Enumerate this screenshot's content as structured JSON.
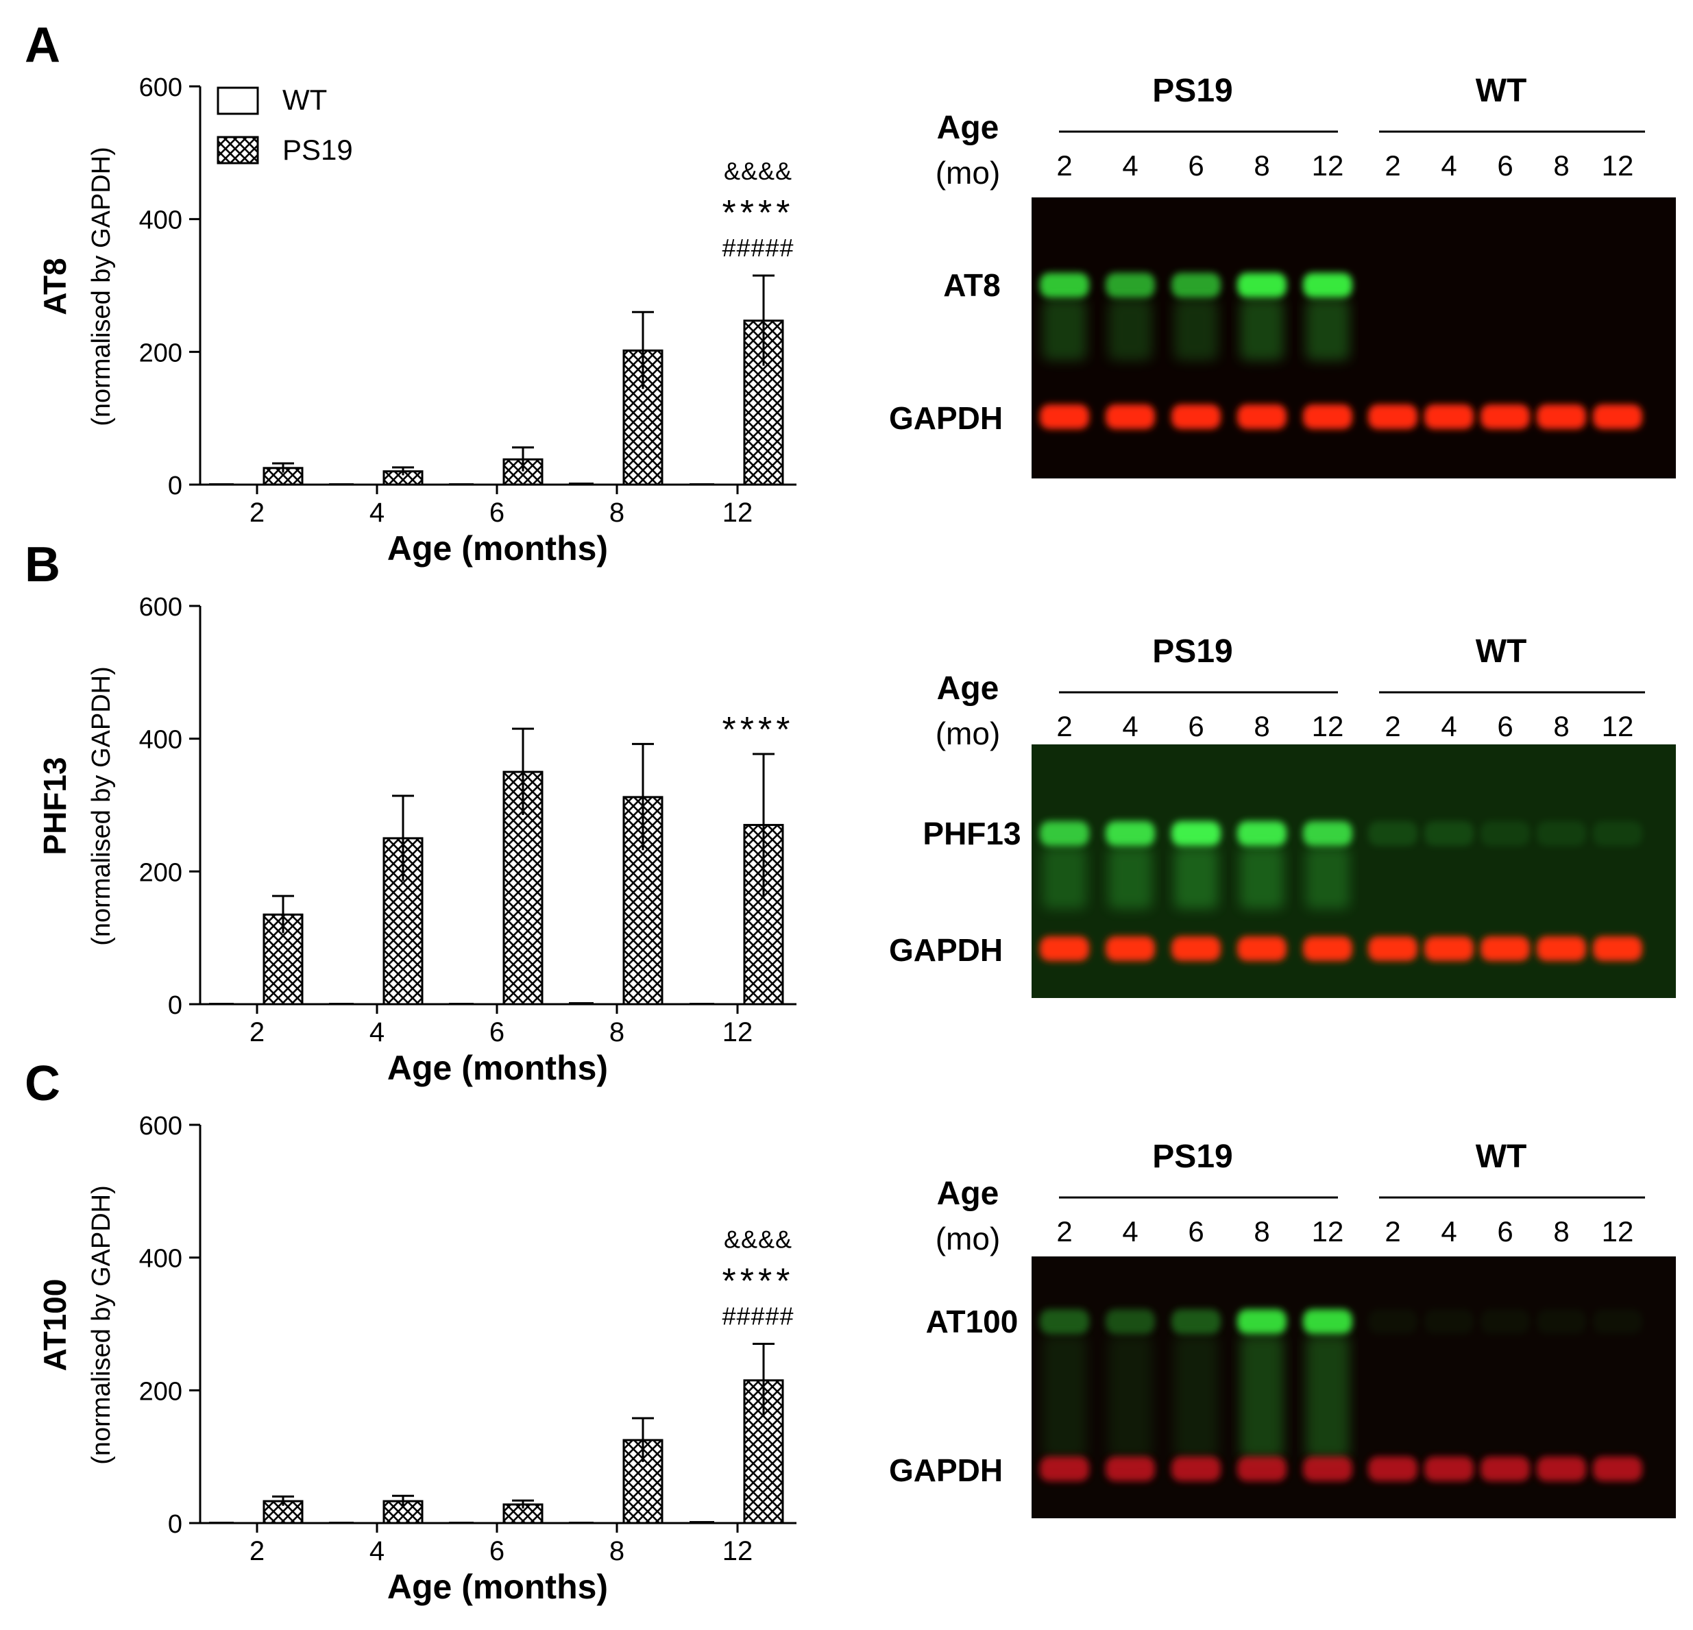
{
  "panels": [
    {
      "letter": "A",
      "ylabel_main": "AT8",
      "ylabel_sub": "(normalised by GAPDH)",
      "xlabel": "Age (months)",
      "ytick_labels": [
        "0",
        "200",
        "400",
        "600"
      ],
      "show_legend": true,
      "sig": [
        "&&&&",
        "****",
        "#####"
      ],
      "blot": {
        "group_left": "PS19",
        "group_right": "WT",
        "age_label": "Age",
        "mo_label": "(mo)",
        "lane_labels": [
          "2",
          "4",
          "6",
          "8",
          "12",
          "2",
          "4",
          "6",
          "8",
          "12"
        ],
        "band1_label": "AT8",
        "band2_label": "GAPDH",
        "background": "#0b0200",
        "band1_color": "#38e83c",
        "band2_color": "#ff2a10",
        "band1_intensity": [
          0.85,
          0.7,
          0.7,
          1.0,
          1.0,
          0,
          0,
          0,
          0,
          0
        ]
      }
    },
    {
      "letter": "B",
      "ylabel_main": "PHF13",
      "ylabel_sub": "(normalised by GAPDH)",
      "xlabel": "Age (months)",
      "ytick_labels": [
        "0",
        "200",
        "400",
        "600"
      ],
      "show_legend": false,
      "sig": [
        "****"
      ],
      "blot": {
        "group_left": "PS19",
        "group_right": "WT",
        "age_label": "Age",
        "mo_label": "(mo)",
        "lane_labels": [
          "2",
          "4",
          "6",
          "8",
          "12",
          "2",
          "4",
          "6",
          "8",
          "12"
        ],
        "band1_label": "PHF13",
        "band2_label": "GAPDH",
        "background": "#0d2a08",
        "band1_color": "#3ff04a",
        "band2_color": "#ff3010",
        "band1_intensity": [
          0.8,
          0.9,
          1.0,
          0.95,
          0.85,
          0.15,
          0.15,
          0.1,
          0.1,
          0.1
        ]
      }
    },
    {
      "letter": "C",
      "ylabel_main": "AT100",
      "ylabel_sub": "(normalised by GAPDH)",
      "xlabel": "Age (months)",
      "ytick_labels": [
        "0",
        "200",
        "400",
        "600"
      ],
      "show_legend": false,
      "sig": [
        "&&&&",
        "****",
        "#####"
      ],
      "blot": {
        "group_left": "PS19",
        "group_right": "WT",
        "age_label": "Age",
        "mo_label": "(mo)",
        "lane_labels": [
          "2",
          "4",
          "6",
          "8",
          "12",
          "2",
          "4",
          "6",
          "8",
          "12"
        ],
        "band1_label": "AT100",
        "band2_label": "GAPDH",
        "background": "#0c0502",
        "band1_color": "#34d838",
        "band2_color": "#e01820",
        "band1_intensity": [
          0.4,
          0.35,
          0.4,
          1.0,
          1.0,
          0.05,
          0.05,
          0.05,
          0.05,
          0.05
        ]
      }
    }
  ],
  "legend": {
    "wt_label": "WT",
    "ps19_label": "PS19"
  },
  "chart_data": [
    {
      "type": "bar",
      "title": "AT8",
      "xlabel": "Age (months)",
      "ylabel": "AT8 (normalised by GAPDH)",
      "ylim": [
        0,
        600
      ],
      "categories": [
        "2",
        "4",
        "6",
        "8",
        "12"
      ],
      "series": [
        {
          "name": "WT",
          "values": [
            1,
            1,
            1,
            2,
            1
          ],
          "errors": [
            0,
            0,
            0,
            0,
            0
          ]
        },
        {
          "name": "PS19",
          "values": [
            25,
            20,
            38,
            202,
            247
          ],
          "errors": [
            7,
            6,
            18,
            58,
            68
          ]
        }
      ]
    },
    {
      "type": "bar",
      "title": "PHF13",
      "xlabel": "Age (months)",
      "ylabel": "PHF13 (normalised by GAPDH)",
      "ylim": [
        0,
        600
      ],
      "categories": [
        "2",
        "4",
        "6",
        "8",
        "12"
      ],
      "series": [
        {
          "name": "WT",
          "values": [
            1,
            1,
            1,
            2,
            1
          ],
          "errors": [
            0,
            0,
            0,
            0,
            0
          ]
        },
        {
          "name": "PS19",
          "values": [
            135,
            250,
            350,
            312,
            270
          ],
          "errors": [
            28,
            64,
            65,
            80,
            107
          ]
        }
      ]
    },
    {
      "type": "bar",
      "title": "AT100",
      "xlabel": "Age (months)",
      "ylabel": "AT100 (normalised by GAPDH)",
      "ylim": [
        0,
        600
      ],
      "categories": [
        "2",
        "4",
        "6",
        "8",
        "12"
      ],
      "series": [
        {
          "name": "WT",
          "values": [
            1,
            1,
            1,
            1,
            2
          ],
          "errors": [
            0,
            0,
            0,
            0,
            0
          ]
        },
        {
          "name": "PS19",
          "values": [
            33,
            33,
            28,
            125,
            215
          ],
          "errors": [
            7,
            8,
            6,
            33,
            55
          ]
        }
      ]
    }
  ]
}
